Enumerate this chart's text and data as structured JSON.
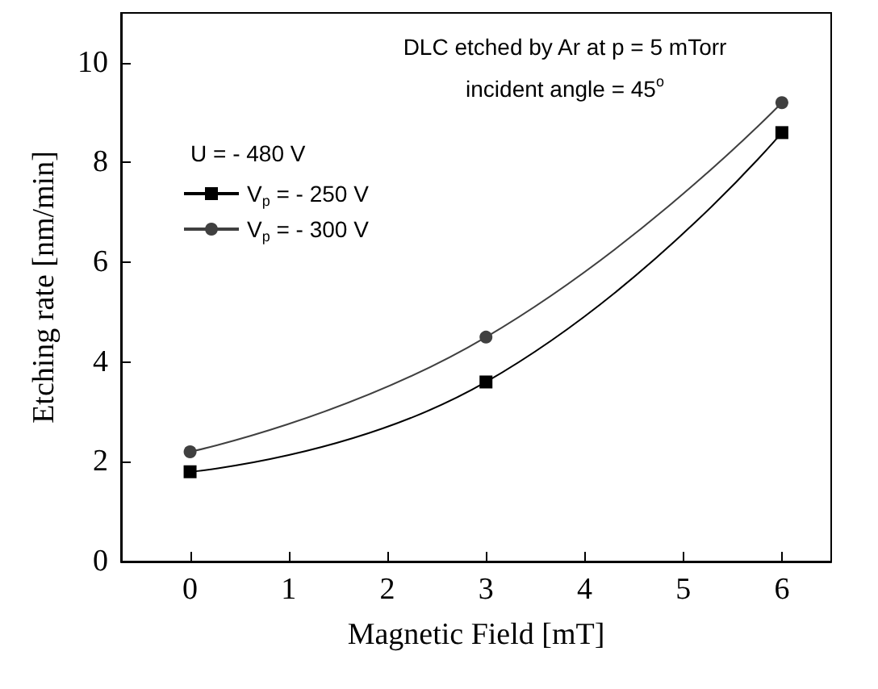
{
  "chart_data": {
    "type": "line",
    "xlabel": "Magnetic Field [mT]",
    "ylabel": "Etching rate [nm/min]",
    "legend_title": "U = - 480 V",
    "annotations": [
      "DLC etched by Ar at p = 5 mTorr",
      "incident angle = 45$^{o}$"
    ],
    "x": [
      0,
      3,
      6
    ],
    "series": [
      {
        "name": "V$_{p}$ = - 250 V",
        "color": "#000000",
        "marker": "square",
        "values": [
          1.8,
          3.6,
          8.6
        ]
      },
      {
        "name": "V$_{p}$ = - 300 V",
        "color": "#404040",
        "marker": "circle",
        "values": [
          2.2,
          4.5,
          9.2
        ]
      }
    ],
    "xlim": [
      -0.7,
      6.5
    ],
    "xticks": [
      0,
      1,
      2,
      3,
      4,
      5,
      6
    ],
    "ylim": [
      0,
      11
    ],
    "yticks": [
      0,
      2,
      4,
      6,
      8,
      10
    ],
    "grid": false,
    "legend": "top left",
    "line_style": "solid"
  }
}
